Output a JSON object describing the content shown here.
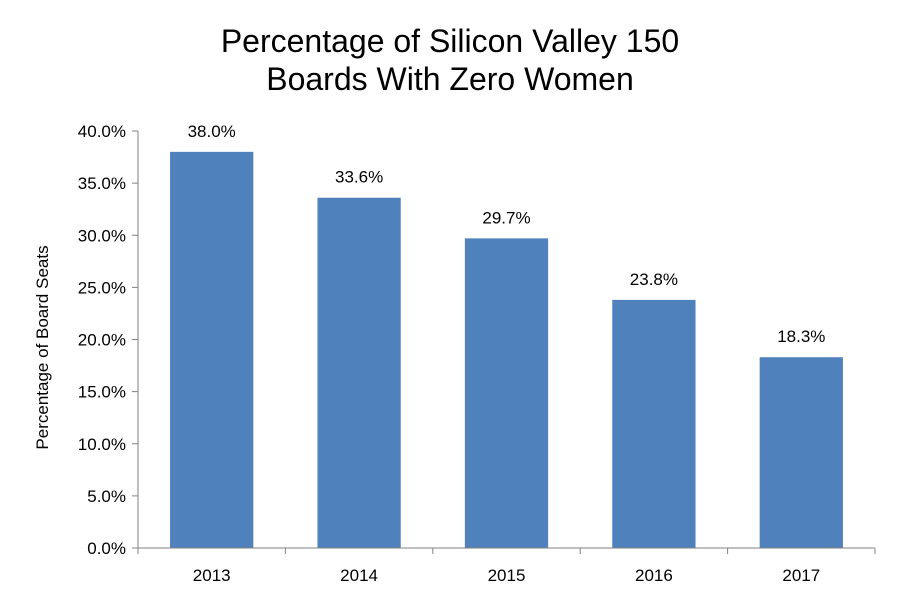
{
  "chart_data": {
    "type": "bar",
    "title": [
      "Percentage of Silicon Valley 150",
      "Boards With Zero Women"
    ],
    "xlabel": "",
    "ylabel": "Percentage of Board Seats",
    "categories": [
      "2013",
      "2014",
      "2015",
      "2016",
      "2017"
    ],
    "values": [
      38.0,
      33.6,
      29.7,
      23.8,
      18.3
    ],
    "data_labels": [
      "38.0%",
      "33.6%",
      "29.7%",
      "23.8%",
      "18.3%"
    ],
    "ylim": [
      0,
      40
    ],
    "y_ticks": [
      0,
      5,
      10,
      15,
      20,
      25,
      30,
      35,
      40
    ],
    "y_tick_labels": [
      "0.0%",
      "5.0%",
      "10.0%",
      "15.0%",
      "20.0%",
      "25.0%",
      "30.0%",
      "35.0%",
      "40.0%"
    ],
    "bar_color": "#4f81bd",
    "grid": false,
    "legend": "none"
  }
}
